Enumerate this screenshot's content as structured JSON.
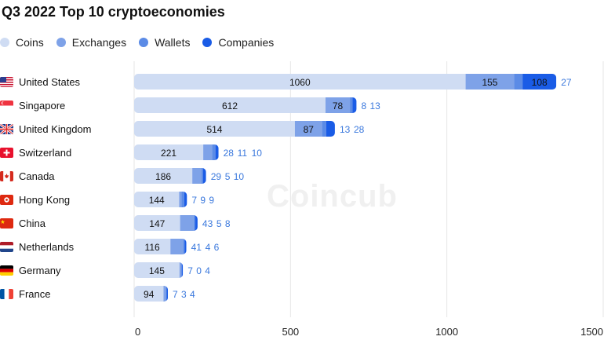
{
  "chart_data": {
    "type": "bar",
    "orientation": "horizontal",
    "stacked": true,
    "title": "Q3 2022 Top 10 cryptoeconomies",
    "categories": [
      "United States",
      "Singapore",
      "United Kingdom",
      "Switzerland",
      "Canada",
      "Hong Kong",
      "China",
      "Netherlands",
      "Germany",
      "France"
    ],
    "series": [
      {
        "name": "Coins",
        "color": "#cfdcf3",
        "values": [
          1060,
          612,
          514,
          221,
          186,
          144,
          147,
          116,
          145,
          94
        ]
      },
      {
        "name": "Exchanges",
        "color": "#7ea2e8",
        "values": [
          155,
          78,
          87,
          28,
          29,
          7,
          43,
          41,
          7,
          7
        ]
      },
      {
        "name": "Wallets",
        "color": "#5b8be6",
        "values": [
          27,
          8,
          13,
          11,
          5,
          9,
          5,
          4,
          0,
          3
        ]
      },
      {
        "name": "Companies",
        "color": "#1a5ce6",
        "values": [
          108,
          13,
          28,
          10,
          10,
          9,
          8,
          6,
          4,
          4
        ]
      }
    ],
    "xlim": [
      0,
      1500
    ],
    "xticks": [
      0,
      500,
      1000,
      1500
    ],
    "grid": true,
    "legend_position": "top-left"
  },
  "watermark": "Coincub"
}
